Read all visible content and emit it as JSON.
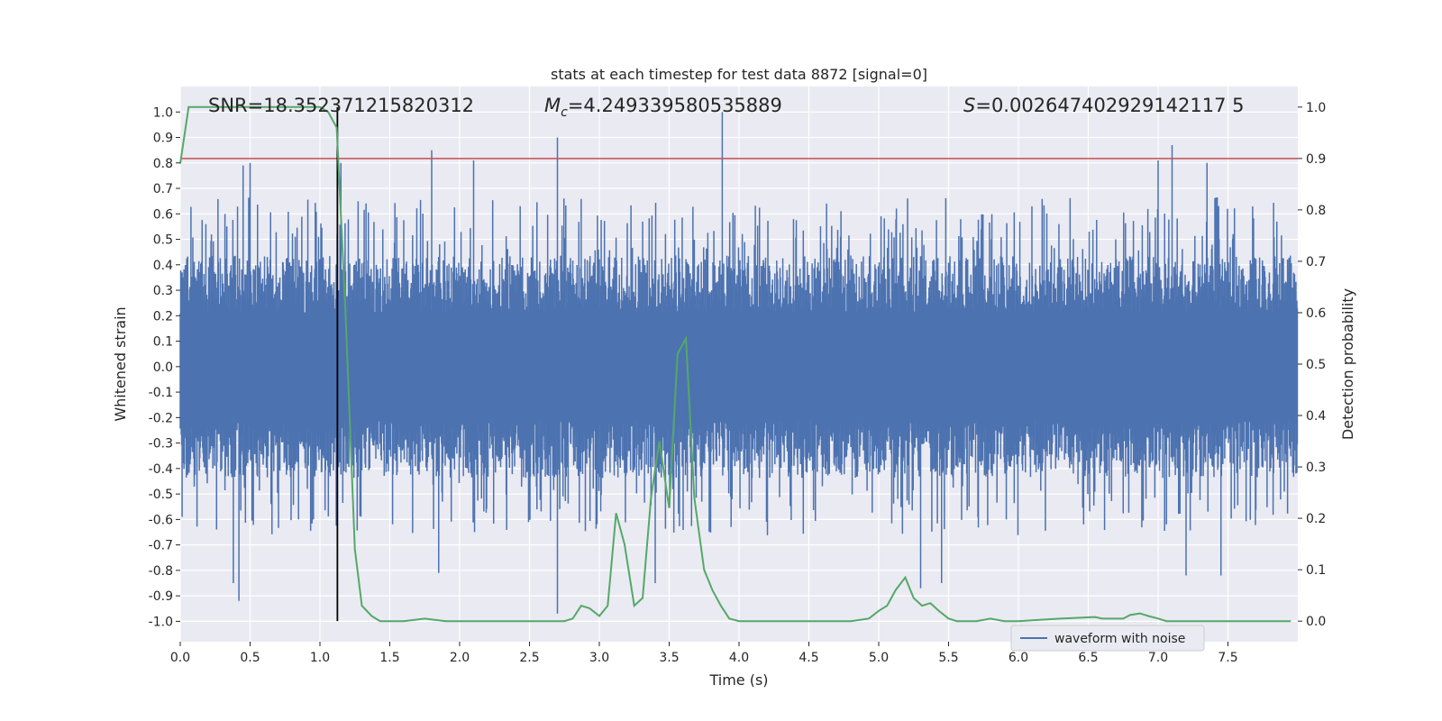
{
  "chart_data": {
    "type": "line",
    "title": "stats at each timestep for test data 8872 [signal=0]",
    "xlabel": "Time (s)",
    "ylabel_left": "Whitened strain",
    "ylabel_right": "Detection probability",
    "xlim": [
      0.0,
      8.0
    ],
    "ylim_left": [
      -1.08,
      1.1
    ],
    "ylim_right": [
      -0.04,
      1.04
    ],
    "x_ticks": [
      0.0,
      0.5,
      1.0,
      1.5,
      2.0,
      2.5,
      3.0,
      3.5,
      4.0,
      4.5,
      5.0,
      5.5,
      6.0,
      6.5,
      7.0,
      7.5
    ],
    "x_tick_labels": [
      "0.0",
      "0.5",
      "1.0",
      "1.5",
      "2.0",
      "2.5",
      "3.0",
      "3.5",
      "4.0",
      "4.5",
      "5.0",
      "5.5",
      "6.0",
      "6.5",
      "7.0",
      "7.5"
    ],
    "y_left_ticks": [
      1.0,
      0.9,
      0.8,
      0.7,
      0.6,
      0.5,
      0.4,
      0.3,
      0.2,
      0.1,
      0.0,
      -0.1,
      -0.2,
      -0.3,
      -0.4,
      -0.5,
      -0.6,
      -0.7,
      -0.8,
      -0.9,
      -1.0
    ],
    "y_left_tick_labels": [
      "1.0",
      "0.9",
      "0.8",
      "0.7",
      "0.6",
      "0.5",
      "0.4",
      "0.3",
      "0.2",
      "0.1",
      "0.0",
      "-0.1",
      "-0.2",
      "-0.3",
      "-0.4",
      "-0.5",
      "-0.6",
      "-0.7",
      "-0.8",
      "-0.9",
      "-1.0"
    ],
    "y_right_ticks": [
      1.0,
      0.9,
      0.8,
      0.7,
      0.6,
      0.5,
      0.4,
      0.3,
      0.2,
      0.1,
      0.0
    ],
    "y_right_tick_labels": [
      "1.0",
      "0.9",
      "0.8",
      "0.7",
      "0.6",
      "0.5",
      "0.4",
      "0.3",
      "0.2",
      "0.1",
      "0.0"
    ],
    "grid": true,
    "legend": {
      "placement": "lower-right",
      "entries": [
        {
          "label": "waveform with noise",
          "color": "#4c72b0"
        }
      ]
    },
    "annotations": {
      "snr": "SNR=18.352371215820312",
      "mc_symbol": "M",
      "mc_sub": "c",
      "mc_value": "=4.249339580535889",
      "s_symbol": "S",
      "s_value": "=0.002647402929142117 5"
    },
    "waveform": {
      "name": "waveform with noise",
      "color": "#4c72b0",
      "envelope": {
        "upper_typical": 0.38,
        "lower_typical": -0.38
      },
      "peaks_x": [
        0.45,
        0.5,
        1.15,
        1.8,
        2.1,
        2.7,
        3.88,
        7.0,
        7.1,
        7.35
      ],
      "peaks_y": [
        0.79,
        0.8,
        0.8,
        0.85,
        0.81,
        0.9,
        1.0,
        0.81,
        0.87,
        0.8
      ],
      "troughs_x": [
        0.38,
        0.42,
        1.85,
        2.7,
        3.4,
        5.3,
        5.45,
        7.2,
        7.45
      ],
      "troughs_y": [
        -0.85,
        -0.92,
        -0.81,
        -0.97,
        -0.85,
        -0.87,
        -0.85,
        -0.82,
        -0.82
      ]
    },
    "threshold": {
      "value": 0.9,
      "axis": "right",
      "color": "#c44e52"
    },
    "marker_line": {
      "x": 1.125,
      "color": "#000000"
    },
    "probability": {
      "color": "#55a868",
      "x": [
        0.0,
        0.06,
        0.1,
        0.2,
        0.3,
        0.4,
        0.5,
        0.6,
        0.7,
        0.8,
        0.9,
        1.0,
        1.06,
        1.12,
        1.18,
        1.25,
        1.3,
        1.37,
        1.43,
        1.5,
        1.6,
        1.75,
        1.9,
        2.1,
        2.3,
        2.6,
        2.75,
        2.81,
        2.87,
        2.93,
        3.0,
        3.06,
        3.12,
        3.18,
        3.25,
        3.31,
        3.37,
        3.43,
        3.5,
        3.56,
        3.62,
        3.68,
        3.75,
        3.81,
        3.87,
        3.93,
        4.0,
        4.2,
        4.5,
        4.8,
        4.93,
        5.0,
        5.06,
        5.12,
        5.19,
        5.25,
        5.31,
        5.37,
        5.43,
        5.5,
        5.56,
        5.62,
        5.7,
        5.8,
        5.9,
        6.0,
        6.3,
        6.55,
        6.6,
        6.7,
        6.75,
        6.8,
        6.87,
        6.93,
        7.0,
        7.06,
        7.12,
        7.3,
        7.6,
        7.95
      ],
      "y": [
        0.89,
        1.0,
        1.0,
        1.0,
        1.0,
        1.0,
        1.0,
        1.0,
        1.0,
        1.0,
        1.0,
        1.0,
        0.99,
        0.96,
        0.62,
        0.14,
        0.03,
        0.01,
        0.0,
        0.0,
        0.0,
        0.005,
        0.0,
        0.0,
        0.0,
        0.0,
        0.0,
        0.005,
        0.03,
        0.025,
        0.01,
        0.03,
        0.21,
        0.15,
        0.03,
        0.045,
        0.24,
        0.35,
        0.22,
        0.52,
        0.55,
        0.24,
        0.1,
        0.06,
        0.03,
        0.005,
        0.0,
        0.0,
        0.0,
        0.0,
        0.005,
        0.02,
        0.03,
        0.06,
        0.085,
        0.045,
        0.03,
        0.035,
        0.02,
        0.005,
        0.0,
        0.0,
        0.0,
        0.005,
        0.0,
        0.0,
        0.005,
        0.008,
        0.005,
        0.005,
        0.005,
        0.012,
        0.015,
        0.01,
        0.005,
        0.0,
        0.0,
        0.0,
        0.0,
        0.0
      ]
    }
  }
}
